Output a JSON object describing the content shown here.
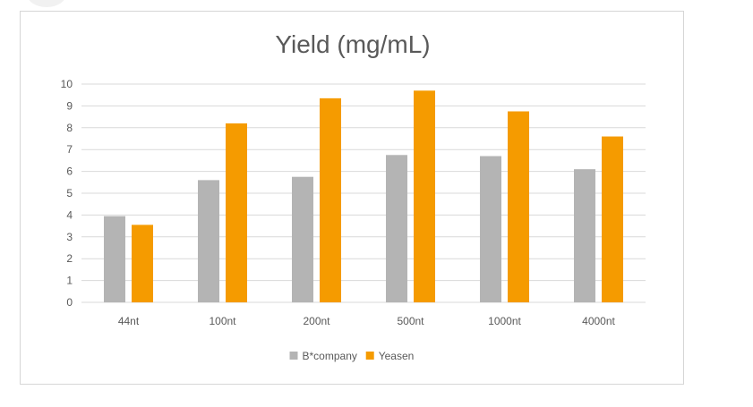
{
  "chart_data": {
    "type": "bar",
    "title": "Yield (mg/mL)",
    "xlabel": "",
    "ylabel": "",
    "categories": [
      "44nt",
      "100nt",
      "200nt",
      "500nt",
      "1000nt",
      "4000nt"
    ],
    "series": [
      {
        "name": "B*company",
        "color": "#b4b4b4",
        "values": [
          3.95,
          5.6,
          5.75,
          6.75,
          6.7,
          6.1
        ]
      },
      {
        "name": "Yeasen",
        "color": "#f59b00",
        "values": [
          3.55,
          8.2,
          9.35,
          9.7,
          8.75,
          7.6
        ]
      }
    ],
    "ylim": [
      0,
      10
    ],
    "yticks": [
      0,
      1,
      2,
      3,
      4,
      5,
      6,
      7,
      8,
      9,
      10
    ],
    "grid": true,
    "legend_position": "bottom"
  }
}
